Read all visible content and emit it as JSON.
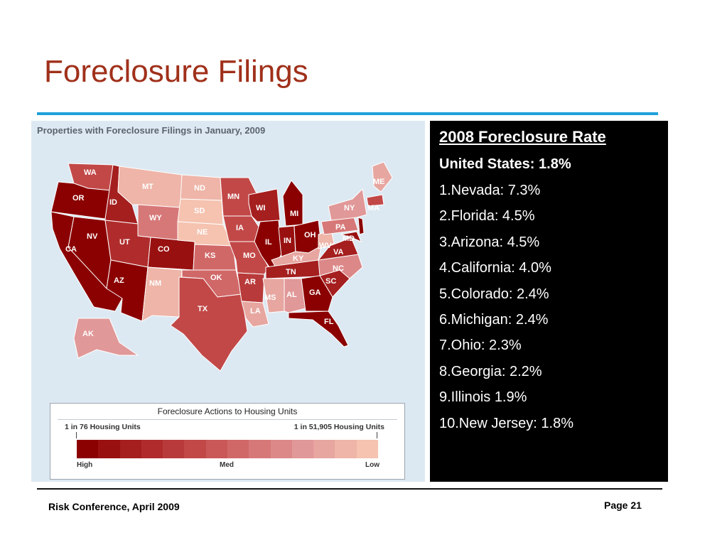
{
  "slide": {
    "title": "Foreclosure Filings",
    "footer_left": "Risk Conference, April 2009",
    "page_label": "Page 21"
  },
  "map": {
    "heading": "Properties with Foreclosure Filings in January, 2009",
    "states": [
      {
        "abbr": "WA"
      },
      {
        "abbr": "OR"
      },
      {
        "abbr": "CA"
      },
      {
        "abbr": "NV"
      },
      {
        "abbr": "ID"
      },
      {
        "abbr": "MT"
      },
      {
        "abbr": "WY"
      },
      {
        "abbr": "UT"
      },
      {
        "abbr": "AZ"
      },
      {
        "abbr": "CO"
      },
      {
        "abbr": "NM"
      },
      {
        "abbr": "ND"
      },
      {
        "abbr": "SD"
      },
      {
        "abbr": "NE"
      },
      {
        "abbr": "KS"
      },
      {
        "abbr": "OK"
      },
      {
        "abbr": "TX"
      },
      {
        "abbr": "MN"
      },
      {
        "abbr": "IA"
      },
      {
        "abbr": "MO"
      },
      {
        "abbr": "AR"
      },
      {
        "abbr": "LA"
      },
      {
        "abbr": "WI"
      },
      {
        "abbr": "IL"
      },
      {
        "abbr": "MI"
      },
      {
        "abbr": "IN"
      },
      {
        "abbr": "OH"
      },
      {
        "abbr": "KY"
      },
      {
        "abbr": "TN"
      },
      {
        "abbr": "MS"
      },
      {
        "abbr": "AL"
      },
      {
        "abbr": "GA"
      },
      {
        "abbr": "FL"
      },
      {
        "abbr": "SC"
      },
      {
        "abbr": "NC"
      },
      {
        "abbr": "VA"
      },
      {
        "abbr": "WV"
      },
      {
        "abbr": "PA"
      },
      {
        "abbr": "NY"
      },
      {
        "abbr": "MD"
      },
      {
        "abbr": "MA"
      },
      {
        "abbr": "ME"
      },
      {
        "abbr": "AK"
      }
    ],
    "legend": {
      "title": "Foreclosure Actions to Housing Units",
      "high_note": "1 in 76 Housing Units",
      "low_note": "1 in 51,905 Housing Units",
      "high": "High",
      "med": "Med",
      "low": "Low",
      "colors": [
        "#8b0000",
        "#991010",
        "#a51f1f",
        "#b02c2c",
        "#b93a3a",
        "#c24848",
        "#ca5858",
        "#d16868",
        "#d77878",
        "#dc8888",
        "#e19898",
        "#e7a6a0",
        "#eeb5a8",
        "#f5c3b0"
      ]
    }
  },
  "rates": {
    "title": "2008 Foreclosure Rate",
    "us_total": "United States: 1.8%",
    "items": [
      "1.Nevada: 7.3%",
      "2.Florida: 4.5%",
      "3.Arizona: 4.5%",
      "4.California: 4.0%",
      "5.Colorado: 2.4%",
      "6.Michigan: 2.4%",
      "7.Ohio: 2.3%",
      "8.Georgia: 2.2%",
      "9.Illinois 1.9%",
      "10.New Jersey: 1.8%"
    ]
  }
}
